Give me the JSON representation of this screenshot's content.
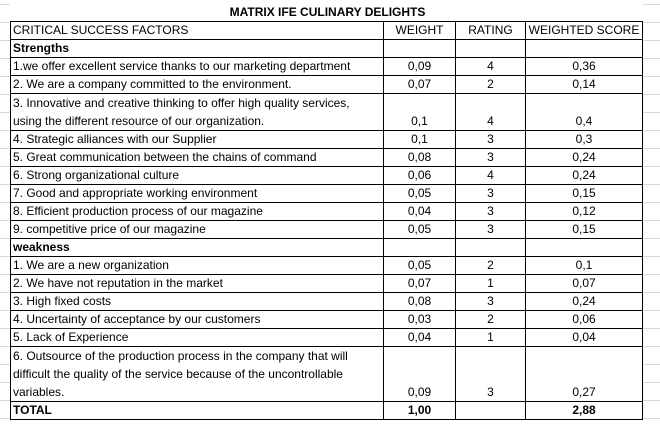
{
  "title": "MATRIX IFE CULINARY DELIGHTS",
  "headers": [
    "CRITICAL SUCCESS FACTORS",
    "WEIGHT",
    "RATING",
    "WEIGHTED SCORE"
  ],
  "sections": [
    {
      "label": "Strengths",
      "rows": [
        {
          "factor": [
            "1.we offer excellent service thanks to our marketing department"
          ],
          "weight": "0,09",
          "rating": "4",
          "score": "0,36"
        },
        {
          "factor": [
            "2. We are a company committed to the environment."
          ],
          "weight": "0,07",
          "rating": "2",
          "score": "0,14"
        },
        {
          "factor": [
            "3. Innovative and creative thinking to offer high quality services,",
            "using the different resource of our organization."
          ],
          "weight": "0,1",
          "rating": "4",
          "score": "0,4"
        },
        {
          "factor": [
            "4.   Strategic alliances with our Supplier"
          ],
          "weight": "0,1",
          "rating": "3",
          "score": "0,3"
        },
        {
          "factor": [
            "5. Great communication between the chains of command"
          ],
          "weight": "0,08",
          "rating": "3",
          "score": "0,24"
        },
        {
          "factor": [
            "6.   Strong organizational culture"
          ],
          "weight": "0,06",
          "rating": "4",
          "score": "0,24"
        },
        {
          "factor": [
            "7.   Good and appropriate working environment"
          ],
          "weight": "0,05",
          "rating": "3",
          "score": "0,15"
        },
        {
          "factor": [
            "8. Efficient production process of our magazine"
          ],
          "weight": "0,04",
          "rating": "3",
          "score": "0,12"
        },
        {
          "factor": [
            "9. competitive price of our magazine"
          ],
          "weight": "0,05",
          "rating": "3",
          "score": "0,15"
        }
      ]
    },
    {
      "label": "weakness",
      "rows": [
        {
          "factor": [
            "1. We are a new organization"
          ],
          "weight": "0,05",
          "rating": "2",
          "score": "0,1"
        },
        {
          "factor": [
            "2. We have not reputation in the market"
          ],
          "weight": "0,07",
          "rating": "1",
          "score": "0,07"
        },
        {
          "factor": [
            "3. High fixed costs"
          ],
          "weight": "0,08",
          "rating": "3",
          "score": "0,24"
        },
        {
          "factor": [
            "4. Uncertainty of acceptance by our customers"
          ],
          "weight": "0,03",
          "rating": "2",
          "score": "0,06"
        },
        {
          "factor": [
            "5. Lack of Experience"
          ],
          "weight": "0,04",
          "rating": "1",
          "score": "0,04"
        },
        {
          "factor": [
            "6. Outsource of the production process in the company that will",
            "difficult the quality of the service because of the uncontrollable",
            "variables."
          ],
          "weight": "0,09",
          "rating": "3",
          "score": "0,27"
        }
      ]
    }
  ],
  "total": {
    "label": "TOTAL",
    "weight": "1,00",
    "rating": "",
    "score": "2,88"
  }
}
